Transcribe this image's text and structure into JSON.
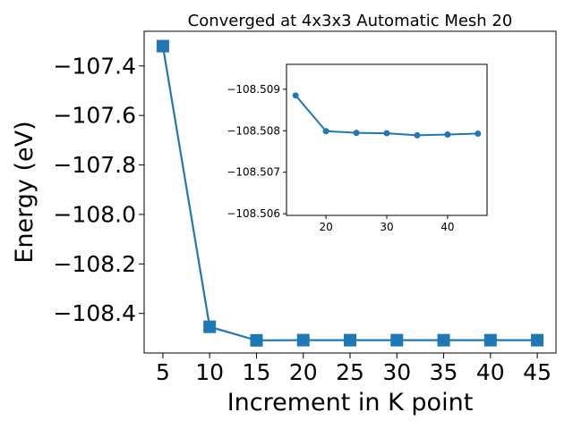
{
  "chart_data": [
    {
      "type": "line",
      "title": "Converged at 4x3x3 Automatic Mesh 20",
      "xlabel": "Increment in K point",
      "ylabel": "Energy (eV)",
      "x": [
        5,
        10,
        15,
        20,
        25,
        30,
        35,
        40,
        45
      ],
      "xticks": [
        5,
        10,
        15,
        20,
        25,
        30,
        35,
        40,
        45
      ],
      "xtick_labels": [
        "5",
        "10",
        "15",
        "20",
        "25",
        "30",
        "35",
        "40",
        "45"
      ],
      "yticks": [
        -107.4,
        -107.6,
        -107.8,
        -108.0,
        -108.2,
        -108.4
      ],
      "ytick_labels": [
        "−107.4",
        "−107.6",
        "−107.8",
        "−108.0",
        "−108.2",
        "−108.4"
      ],
      "xlim": [
        3,
        47
      ],
      "ylim": [
        -108.56,
        -107.26
      ],
      "marker": "square",
      "color": "#1f77b4",
      "grid": false,
      "series": [
        {
          "values": [
            -107.32,
            -108.454,
            -108.5088,
            -108.508,
            -108.50805,
            -108.50805,
            -108.5081,
            -108.5081,
            -108.5081
          ]
        }
      ]
    },
    {
      "type": "line",
      "title": "",
      "xlabel": "",
      "ylabel": "",
      "x": [
        15,
        20,
        25,
        30,
        35,
        40,
        45
      ],
      "xticks": [
        20,
        30,
        40
      ],
      "xtick_labels": [
        "20",
        "30",
        "40"
      ],
      "yticks": [
        -108.509,
        -108.508,
        -108.507,
        -108.506
      ],
      "ytick_labels": [
        "−108.509",
        "−108.508",
        "−108.507",
        "−108.506"
      ],
      "xlim": [
        13.5,
        46.5
      ],
      "ylim": [
        -108.5096,
        -108.50596
      ],
      "y_inverted": true,
      "marker": "circle",
      "color": "#1f77b4",
      "grid": false,
      "series": [
        {
          "values": [
            -108.50885,
            -108.50799,
            -108.50795,
            -108.50794,
            -108.50789,
            -108.50791,
            -108.50793
          ]
        }
      ]
    }
  ]
}
